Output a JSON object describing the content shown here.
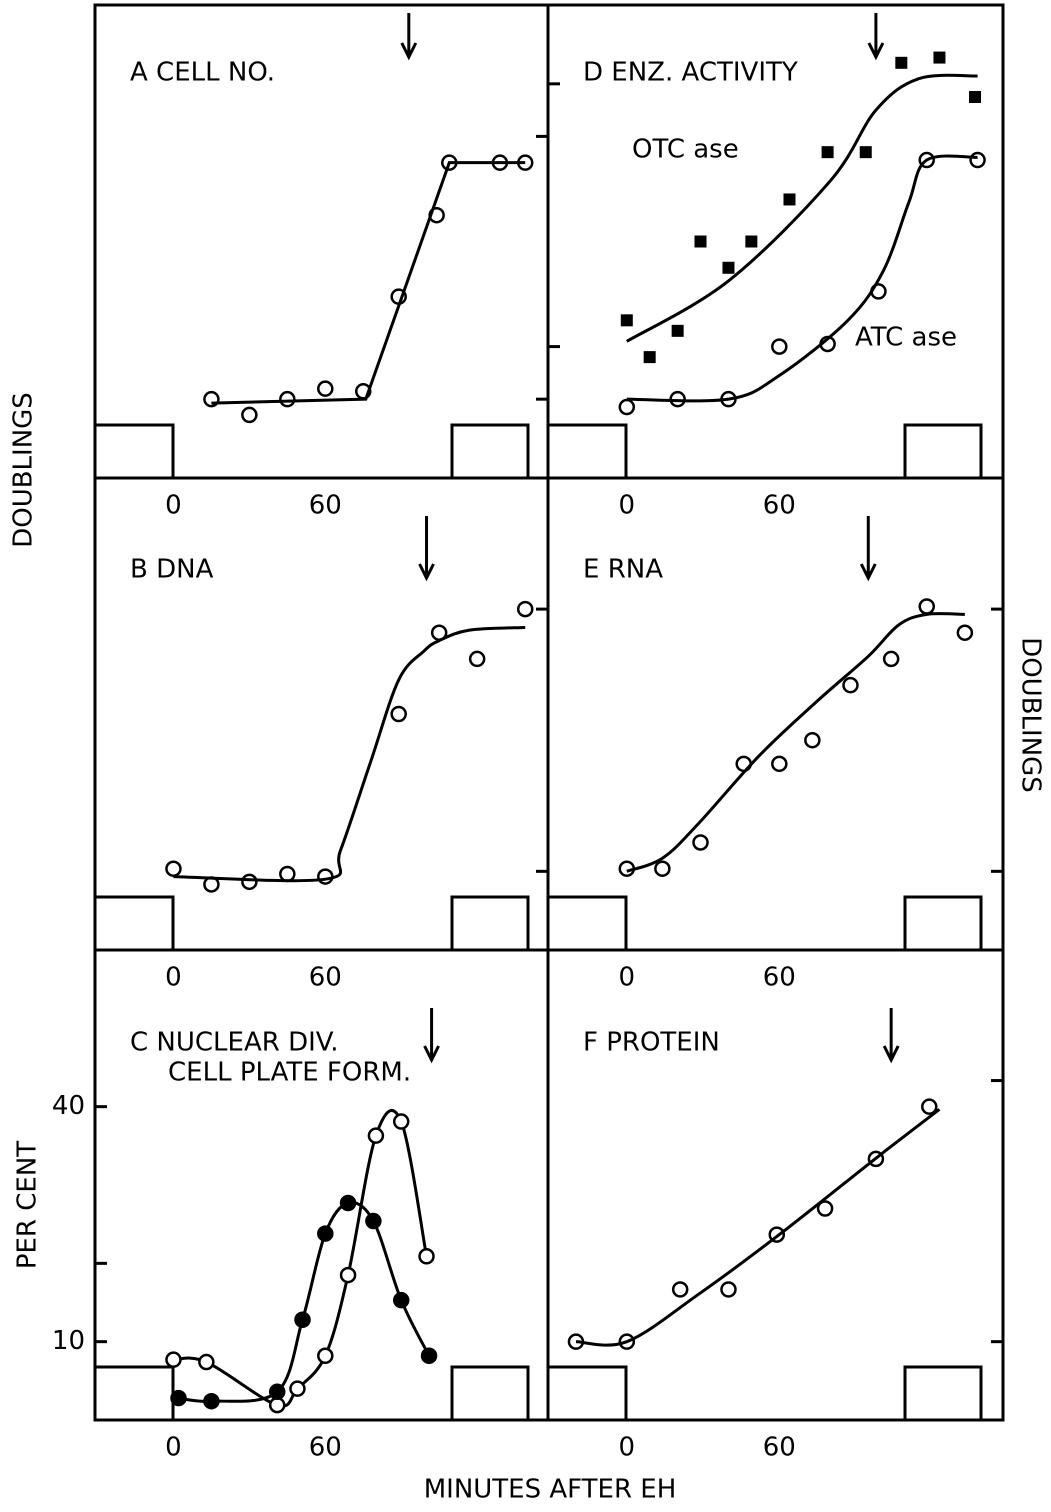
{
  "figure": {
    "ylabel_left": "DOUBLINGS",
    "ylabel_right": "DOUBLINGS",
    "xlabel": "MINUTES AFTER EH"
  },
  "chart_data": [
    {
      "type": "scatter",
      "title": "A CELL NO.",
      "xlim": [
        -31,
        148
      ],
      "xticks": [
        0,
        60
      ],
      "ylim": [
        -0.3,
        1.5
      ],
      "yticks": [
        0,
        1
      ],
      "ytick_labels": false,
      "ytick_side": "right",
      "arrow_x": 93,
      "series": [
        {
          "color": "#000000",
          "marker": "open-circle",
          "line": "none",
          "x": [
            15,
            30,
            45,
            60,
            75,
            89,
            104,
            109,
            129,
            139
          ],
          "values": [
            0,
            -0.06,
            0,
            0.04,
            0.03,
            0.39,
            0.7,
            0.9,
            0.9,
            0.9
          ]
        },
        {
          "color": "#000000",
          "marker": "none",
          "line": "straight",
          "x": [
            15,
            76,
            109,
            139
          ],
          "values": [
            -0.015,
            0,
            0.9,
            0.9
          ]
        }
      ]
    },
    {
      "type": "scatter",
      "title": "B DNA",
      "xlim": [
        -31,
        148
      ],
      "xticks": [
        0,
        60
      ],
      "ylim": [
        -0.3,
        1.5
      ],
      "yticks": [
        0,
        1
      ],
      "ytick_labels": false,
      "ytick_side": "right",
      "arrow_x": 100,
      "series": [
        {
          "color": "#000000",
          "marker": "open-circle",
          "line": "none",
          "x": [
            0,
            15,
            30,
            45,
            60,
            89,
            105,
            120,
            139
          ],
          "values": [
            0.01,
            -0.05,
            -0.04,
            -0.01,
            -0.02,
            0.6,
            0.91,
            0.81,
            1.0
          ]
        },
        {
          "color": "#000000",
          "marker": "none",
          "line": "smooth",
          "x": [
            0,
            60,
            66,
            78,
            89,
            99,
            105,
            117,
            139
          ],
          "values": [
            -0.02,
            -0.03,
            0.08,
            0.42,
            0.73,
            0.84,
            0.88,
            0.92,
            0.93
          ]
        }
      ]
    },
    {
      "type": "scatter",
      "title": "C NUCLEAR DIV.",
      "subtitle": "CELL PLATE FORM.",
      "ylabel": "PER CENT",
      "xlim": [
        -31,
        148
      ],
      "xticks": [
        0,
        60
      ],
      "ylim": [
        0,
        60
      ],
      "yticks": [
        10,
        40
      ],
      "minor_yticks": [
        20
      ],
      "ytick_labels": true,
      "ytick_side": "left",
      "arrow_x": 102,
      "series": [
        {
          "color": "#000000",
          "marker": "open-circle",
          "line": "smooth",
          "x": [
            0,
            13,
            41,
            49,
            60,
            69,
            80,
            90,
            100
          ],
          "values": [
            7.7,
            7.4,
            1.9,
            4.0,
            8.2,
            18.5,
            36.3,
            38.1,
            20.9
          ]
        },
        {
          "color": "#000000",
          "marker": "filled-circle",
          "line": "smooth",
          "x": [
            2,
            15,
            41,
            51,
            60,
            69,
            79,
            90,
            101
          ],
          "values": [
            2.8,
            2.4,
            3.6,
            12.8,
            23.8,
            27.7,
            25.4,
            15.3,
            8.2
          ]
        }
      ]
    },
    {
      "type": "scatter",
      "title": "D ENZ. ACTIVITY",
      "xlim": [
        -31,
        148
      ],
      "xticks": [
        0,
        60
      ],
      "ylim": [
        -0.5,
        1.3
      ],
      "yticks": [
        0,
        1
      ],
      "ytick_labels": false,
      "ytick_side": "left",
      "arrow_x": 98,
      "series": [
        {
          "name": "OTC ase",
          "color": "#000000",
          "marker": "filled-square",
          "line": "none",
          "x": [
            0,
            9,
            20,
            29,
            40,
            49,
            64,
            79,
            94,
            108,
            123,
            137
          ],
          "values": [
            0.1,
            -0.04,
            0.06,
            0.4,
            0.3,
            0.4,
            0.56,
            0.74,
            0.74,
            1.08,
            1.1,
            0.95
          ]
        },
        {
          "color": "#000000",
          "marker": "none",
          "line": "smooth",
          "x": [
            0,
            40,
            80,
            98,
            115,
            138
          ],
          "values": [
            0.02,
            0.25,
            0.63,
            0.9,
            1.02,
            1.03
          ]
        },
        {
          "name": "ATC ase",
          "color": "#000000",
          "marker": "open-circle",
          "line": "none",
          "x": [
            0,
            20,
            40,
            60,
            79,
            99,
            118,
            138
          ],
          "values": [
            -0.23,
            -0.2,
            -0.2,
            0,
            0.01,
            0.21,
            0.71,
            0.71
          ]
        },
        {
          "color": "#000000",
          "marker": "none",
          "line": "smooth",
          "x": [
            0,
            40,
            60,
            87,
            101,
            111,
            118,
            138
          ],
          "values": [
            -0.2,
            -0.2,
            -0.11,
            0.1,
            0.29,
            0.55,
            0.71,
            0.72
          ]
        }
      ]
    },
    {
      "type": "scatter",
      "title": "E RNA",
      "xlim": [
        -31,
        148
      ],
      "xticks": [
        0,
        60
      ],
      "ylim": [
        -0.3,
        1.5
      ],
      "yticks": [
        0,
        1
      ],
      "ytick_labels": false,
      "ytick_side": "right",
      "arrow_x": 95,
      "series": [
        {
          "color": "#000000",
          "marker": "open-circle",
          "line": "none",
          "x": [
            0,
            14,
            29,
            46,
            60,
            73,
            88,
            104,
            118,
            133
          ],
          "values": [
            0.01,
            0.01,
            0.11,
            0.41,
            0.41,
            0.5,
            0.71,
            0.81,
            1.01,
            0.91
          ]
        },
        {
          "color": "#000000",
          "marker": "none",
          "line": "smooth",
          "x": [
            0,
            14,
            28,
            52,
            75,
            95,
            107,
            118,
            133
          ],
          "values": [
            0,
            0.05,
            0.18,
            0.44,
            0.65,
            0.82,
            0.94,
            0.98,
            0.98
          ]
        }
      ]
    },
    {
      "type": "scatter",
      "title": "F PROTEIN",
      "xlim": [
        -31,
        148
      ],
      "xticks": [
        0,
        60
      ],
      "ylim": [
        -0.3,
        1.5
      ],
      "yticks": [
        0,
        1
      ],
      "ytick_labels": false,
      "ytick_side": "right",
      "arrow_x": 104,
      "series": [
        {
          "color": "#000000",
          "marker": "open-circle",
          "line": "none",
          "x": [
            -20,
            0,
            21,
            40,
            59,
            78,
            98,
            119
          ],
          "values": [
            0,
            0,
            0.2,
            0.2,
            0.41,
            0.51,
            0.7,
            0.9
          ]
        },
        {
          "color": "#000000",
          "marker": "none",
          "line": "smooth",
          "x": [
            -20,
            0,
            28,
            60,
            99,
            123
          ],
          "values": [
            0,
            0,
            0.18,
            0.41,
            0.71,
            0.89
          ]
        }
      ]
    }
  ]
}
